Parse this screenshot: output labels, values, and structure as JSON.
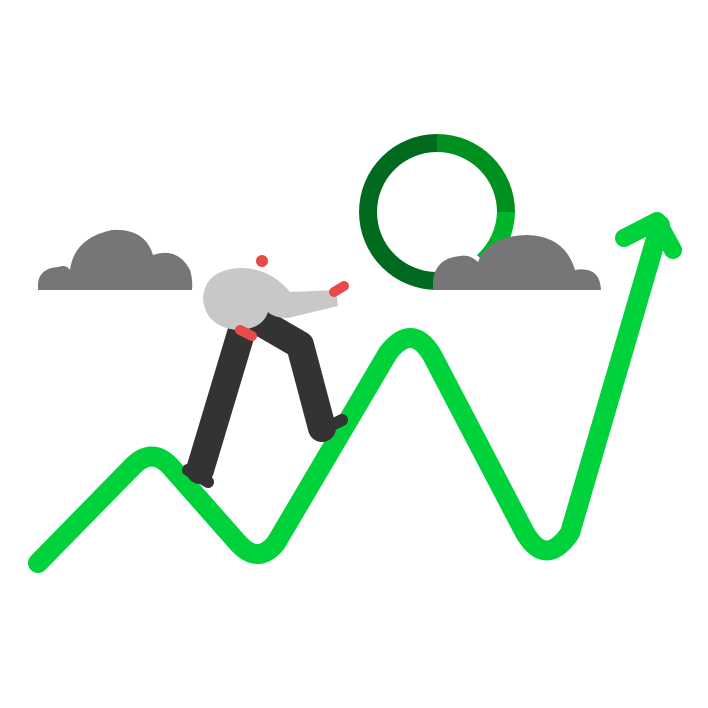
{
  "illustration": {
    "subject": "person-climbing-growth-chart",
    "colors": {
      "trend_line": "#00d23c",
      "ring_dark": "#006b1e",
      "ring_mid": "#00901f",
      "ring_light": "#00b52a",
      "cloud": "#767676",
      "shirt": "#c8c8c8",
      "pants": "#333333",
      "skin_accent": "#e84a4a"
    },
    "icons": [
      "growth-arrow-icon",
      "progress-ring-icon",
      "cloud-icon"
    ]
  }
}
